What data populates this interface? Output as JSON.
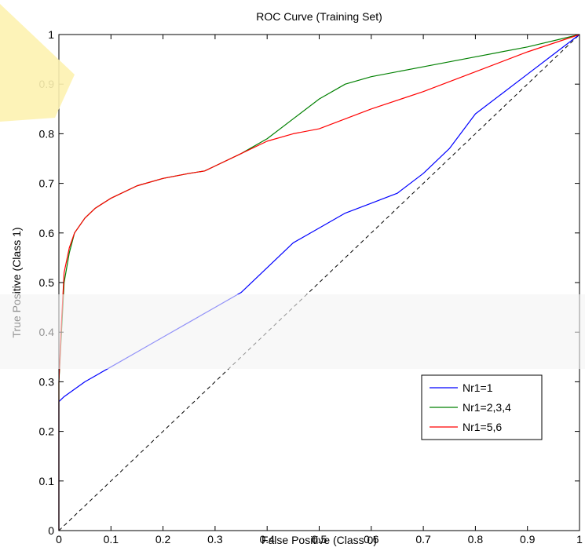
{
  "chart_data": {
    "type": "line",
    "title": "ROC Curve (Training Set)",
    "xlabel": "False Positive (Class 0)",
    "ylabel": "True Positive (Class 1)",
    "xlim": [
      0,
      1
    ],
    "ylim": [
      0,
      1
    ],
    "grid": false,
    "legend_position": "bottom-right",
    "xticks": [
      "0",
      "0.1",
      "0.2",
      "0.3",
      "0.4",
      "0.5",
      "0.6",
      "0.7",
      "0.8",
      "0.9",
      "1"
    ],
    "yticks": [
      "0",
      "0.1",
      "0.2",
      "0.3",
      "0.4",
      "0.5",
      "0.6",
      "0.7",
      "0.8",
      "0.9",
      "1"
    ],
    "reference_line": {
      "style": "dashed",
      "color": "#000000",
      "points": [
        [
          0,
          0
        ],
        [
          1,
          1
        ]
      ]
    },
    "series": [
      {
        "name": "Nr1=1",
        "color": "#0000ff",
        "points": [
          [
            0,
            0
          ],
          [
            0,
            0.26
          ],
          [
            0.01,
            0.27
          ],
          [
            0.05,
            0.3
          ],
          [
            0.1,
            0.33
          ],
          [
            0.15,
            0.36
          ],
          [
            0.2,
            0.39
          ],
          [
            0.25,
            0.42
          ],
          [
            0.3,
            0.45
          ],
          [
            0.35,
            0.48
          ],
          [
            0.4,
            0.53
          ],
          [
            0.45,
            0.58
          ],
          [
            0.5,
            0.61
          ],
          [
            0.55,
            0.64
          ],
          [
            0.6,
            0.66
          ],
          [
            0.65,
            0.68
          ],
          [
            0.7,
            0.72
          ],
          [
            0.75,
            0.77
          ],
          [
            0.8,
            0.84
          ],
          [
            0.85,
            0.88
          ],
          [
            0.9,
            0.92
          ],
          [
            0.95,
            0.96
          ],
          [
            1,
            1
          ]
        ]
      },
      {
        "name": "Nr1=2,3,4",
        "color": "#008000",
        "points": [
          [
            0,
            0
          ],
          [
            0,
            0.3
          ],
          [
            0.005,
            0.4
          ],
          [
            0.01,
            0.5
          ],
          [
            0.02,
            0.56
          ],
          [
            0.03,
            0.6
          ],
          [
            0.05,
            0.63
          ],
          [
            0.07,
            0.65
          ],
          [
            0.1,
            0.67
          ],
          [
            0.15,
            0.695
          ],
          [
            0.2,
            0.71
          ],
          [
            0.25,
            0.72
          ],
          [
            0.28,
            0.725
          ],
          [
            0.3,
            0.735
          ],
          [
            0.35,
            0.76
          ],
          [
            0.4,
            0.79
          ],
          [
            0.45,
            0.83
          ],
          [
            0.5,
            0.87
          ],
          [
            0.55,
            0.9
          ],
          [
            0.6,
            0.915
          ],
          [
            0.7,
            0.935
          ],
          [
            0.8,
            0.955
          ],
          [
            0.9,
            0.975
          ],
          [
            1,
            1
          ]
        ]
      },
      {
        "name": "Nr1=5,6",
        "color": "#ff0000",
        "points": [
          [
            0,
            0
          ],
          [
            0,
            0.3
          ],
          [
            0.005,
            0.42
          ],
          [
            0.01,
            0.52
          ],
          [
            0.02,
            0.57
          ],
          [
            0.03,
            0.6
          ],
          [
            0.05,
            0.63
          ],
          [
            0.07,
            0.65
          ],
          [
            0.1,
            0.67
          ],
          [
            0.15,
            0.695
          ],
          [
            0.2,
            0.71
          ],
          [
            0.25,
            0.72
          ],
          [
            0.28,
            0.725
          ],
          [
            0.3,
            0.735
          ],
          [
            0.35,
            0.76
          ],
          [
            0.4,
            0.785
          ],
          [
            0.45,
            0.8
          ],
          [
            0.5,
            0.81
          ],
          [
            0.55,
            0.83
          ],
          [
            0.6,
            0.85
          ],
          [
            0.7,
            0.885
          ],
          [
            0.8,
            0.925
          ],
          [
            0.9,
            0.965
          ],
          [
            1,
            1
          ]
        ]
      }
    ]
  }
}
